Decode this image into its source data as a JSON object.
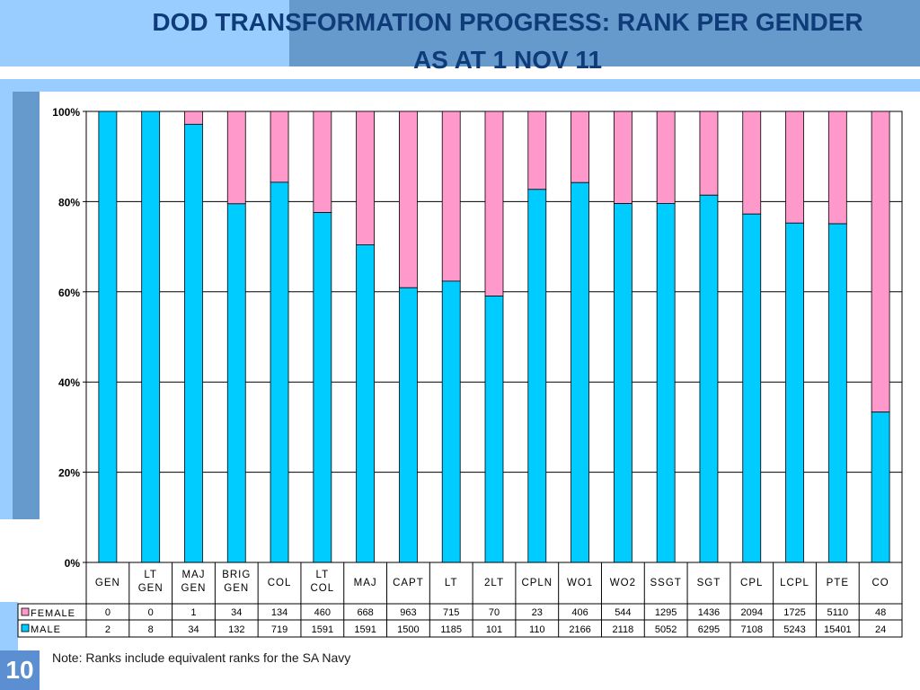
{
  "title": "DOD TRANSFORMATION PROGRESS: RANK PER GENDER\nAS AT 1 NOV 11",
  "note": "Note: Ranks include equivalent ranks for the SA Navy",
  "slide_number": "10",
  "colors": {
    "female": "#ff99cc",
    "male": "#00ccff",
    "title": "#0f3c78",
    "band_light": "#99ccff",
    "band_dark": "#6699cc"
  },
  "chart_data": {
    "type": "bar",
    "stacked": "percent",
    "categories": [
      "GEN",
      "LT\nGEN",
      "MAJ\nGEN",
      "BRIG\nGEN",
      "COL",
      "LT\nCOL",
      "MAJ",
      "CAPT",
      "LT",
      "2LT",
      "CPLN",
      "WO1",
      "WO2",
      "SSGT",
      "SGT",
      "CPL",
      "LCPL",
      "PTE",
      "CO"
    ],
    "series": [
      {
        "name": "MALE",
        "values": [
          2,
          8,
          34,
          132,
          719,
          1591,
          1591,
          1500,
          1185,
          101,
          110,
          2166,
          2118,
          5052,
          6295,
          7108,
          5243,
          15401,
          24
        ]
      },
      {
        "name": "FEMALE",
        "values": [
          0,
          0,
          1,
          34,
          134,
          460,
          668,
          963,
          715,
          70,
          23,
          406,
          544,
          1295,
          1436,
          2094,
          1725,
          5110,
          48
        ]
      }
    ],
    "yticks": [
      "0%",
      "20%",
      "40%",
      "60%",
      "80%",
      "100%"
    ],
    "ylim": [
      0,
      100
    ],
    "grid": true,
    "legend": "data-table-left"
  }
}
